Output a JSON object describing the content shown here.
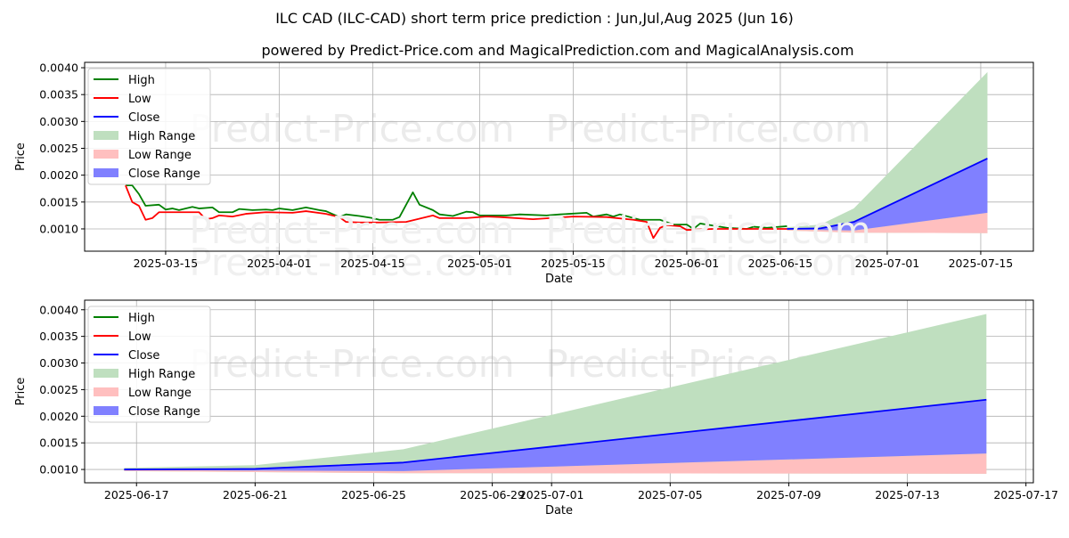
{
  "title": "ILC CAD (ILC-CAD) short term price prediction : Jun,Jul,Aug 2025 (Jun 16)",
  "subtitle": "powered by Predict-Price.com and MagicalPrediction.com and MagicalAnalysis.com",
  "watermark": "Predict-Price.com",
  "colors": {
    "high": "#008000",
    "low": "#ff0000",
    "close": "#0000ff",
    "high_range": "#bfdfbf",
    "low_range": "#ffbfbf",
    "close_range": "#8080ff"
  },
  "chart_data": [
    {
      "type": "line",
      "xlabel": "Date",
      "ylabel": "Price",
      "xlim": [
        "2025-03-02T21:00",
        "2025-07-22T21:00"
      ],
      "ylim": [
        0.000585,
        0.0041
      ],
      "grid": true,
      "legend_placement": "top-left",
      "legend": [
        "High",
        "Low",
        "Close",
        "High Range",
        "Low Range",
        "Close Range"
      ],
      "xticks": [
        "2025-03-15",
        "2025-04-01",
        "2025-04-15",
        "2025-05-01",
        "2025-05-15",
        "2025-06-01",
        "2025-06-15",
        "2025-07-01",
        "2025-07-15"
      ],
      "yticks": [
        "0.0010",
        "0.0015",
        "0.0020",
        "0.0025",
        "0.0030",
        "0.0035",
        "0.0040"
      ],
      "series": [
        {
          "name": "High",
          "points": [
            [
              "2025-03-09",
              0.00181
            ],
            [
              "2025-03-10",
              0.00181
            ],
            [
              "2025-03-11",
              0.00165
            ],
            [
              "2025-03-12",
              0.00143
            ],
            [
              "2025-03-14",
              0.00145
            ],
            [
              "2025-03-15",
              0.00136
            ],
            [
              "2025-03-16",
              0.00138
            ],
            [
              "2025-03-17",
              0.00135
            ],
            [
              "2025-03-19",
              0.00141
            ],
            [
              "2025-03-20",
              0.00138
            ],
            [
              "2025-03-22",
              0.0014
            ],
            [
              "2025-03-23",
              0.00131
            ],
            [
              "2025-03-25",
              0.00131
            ],
            [
              "2025-03-26",
              0.00137
            ],
            [
              "2025-03-28",
              0.00135
            ],
            [
              "2025-03-30",
              0.00136
            ],
            [
              "2025-03-31",
              0.00135
            ],
            [
              "2025-04-01",
              0.00138
            ],
            [
              "2025-04-03",
              0.00135
            ],
            [
              "2025-04-05",
              0.0014
            ],
            [
              "2025-04-07",
              0.00135
            ],
            [
              "2025-04-08",
              0.00133
            ],
            [
              "2025-04-10",
              0.00122
            ],
            [
              "2025-04-11",
              0.00127
            ],
            [
              "2025-04-13",
              0.00124
            ],
            [
              "2025-04-15",
              0.0012
            ],
            [
              "2025-04-16",
              0.00117
            ],
            [
              "2025-04-18",
              0.00117
            ],
            [
              "2025-04-19",
              0.00122
            ],
            [
              "2025-04-21",
              0.00168
            ],
            [
              "2025-04-22",
              0.00145
            ],
            [
              "2025-04-24",
              0.00135
            ],
            [
              "2025-04-25",
              0.00127
            ],
            [
              "2025-04-27",
              0.00124
            ],
            [
              "2025-04-29",
              0.00132
            ],
            [
              "2025-04-30",
              0.00131
            ],
            [
              "2025-05-01",
              0.00125
            ],
            [
              "2025-05-05",
              0.00125
            ],
            [
              "2025-05-07",
              0.00127
            ],
            [
              "2025-05-11",
              0.00125
            ],
            [
              "2025-05-13",
              0.00127
            ],
            [
              "2025-05-17",
              0.0013
            ],
            [
              "2025-05-18",
              0.00123
            ],
            [
              "2025-05-20",
              0.00127
            ],
            [
              "2025-05-21",
              0.00123
            ],
            [
              "2025-05-22",
              0.00127
            ],
            [
              "2025-05-25",
              0.00117
            ],
            [
              "2025-05-28",
              0.00117
            ],
            [
              "2025-05-30",
              0.00108
            ],
            [
              "2025-06-01",
              0.00108
            ],
            [
              "2025-06-02",
              0.001
            ],
            [
              "2025-06-03",
              0.0011
            ],
            [
              "2025-06-07",
              0.00102
            ],
            [
              "2025-06-10",
              0.001
            ],
            [
              "2025-06-11",
              0.00104
            ],
            [
              "2025-06-13",
              0.00102
            ],
            [
              "2025-06-16",
              0.00105
            ]
          ]
        },
        {
          "name": "Low",
          "points": [
            [
              "2025-03-09",
              0.00181
            ],
            [
              "2025-03-10",
              0.0015
            ],
            [
              "2025-03-11",
              0.00143
            ],
            [
              "2025-03-12",
              0.00117
            ],
            [
              "2025-03-13",
              0.0012
            ],
            [
              "2025-03-14",
              0.00131
            ],
            [
              "2025-03-20",
              0.00131
            ],
            [
              "2025-03-21",
              0.00118
            ],
            [
              "2025-03-22",
              0.0012
            ],
            [
              "2025-03-23",
              0.00125
            ],
            [
              "2025-03-25",
              0.00123
            ],
            [
              "2025-03-27",
              0.00128
            ],
            [
              "2025-03-30",
              0.00131
            ],
            [
              "2025-04-03",
              0.0013
            ],
            [
              "2025-04-05",
              0.00133
            ],
            [
              "2025-04-08",
              0.00128
            ],
            [
              "2025-04-10",
              0.00122
            ],
            [
              "2025-04-11",
              0.00113
            ],
            [
              "2025-04-13",
              0.00112
            ],
            [
              "2025-04-16",
              0.00112
            ],
            [
              "2025-04-20",
              0.00113
            ],
            [
              "2025-04-24",
              0.00125
            ],
            [
              "2025-04-25",
              0.0012
            ],
            [
              "2025-04-29",
              0.0012
            ],
            [
              "2025-05-02",
              0.00123
            ],
            [
              "2025-05-04",
              0.00122
            ],
            [
              "2025-05-09",
              0.00118
            ],
            [
              "2025-05-15",
              0.00123
            ],
            [
              "2025-05-20",
              0.00122
            ],
            [
              "2025-05-24",
              0.00117
            ],
            [
              "2025-05-26",
              0.00113
            ],
            [
              "2025-05-27",
              0.00083
            ],
            [
              "2025-05-28",
              0.00102
            ],
            [
              "2025-05-29",
              0.00107
            ],
            [
              "2025-05-31",
              0.00105
            ],
            [
              "2025-06-01",
              0.00098
            ],
            [
              "2025-06-05",
              0.001
            ],
            [
              "2025-06-09",
              0.001
            ],
            [
              "2025-06-16",
              0.001
            ]
          ]
        },
        {
          "name": "Close",
          "points": [
            [
              "2025-06-16",
              0.001
            ],
            [
              "2025-06-21",
              0.00101
            ],
            [
              "2025-06-26",
              0.00113
            ],
            [
              "2025-07-16",
              0.00231
            ]
          ]
        }
      ],
      "ranges": {
        "dates": [
          "2025-06-16",
          "2025-06-21",
          "2025-06-26",
          "2025-07-16"
        ],
        "high": [
          0.00103,
          0.00108,
          0.00138,
          0.00392
        ],
        "close": [
          0.001,
          0.00101,
          0.00113,
          0.00231
        ],
        "low_upper": [
          0.00099,
          0.00098,
          0.00097,
          0.0013
        ],
        "low_lower": [
          0.00097,
          0.00095,
          0.00093,
          0.00092
        ]
      }
    },
    {
      "type": "line",
      "xlabel": "Date",
      "ylabel": "Price",
      "xlim": [
        "2025-06-15T06:00",
        "2025-07-17T06:00"
      ],
      "ylim": [
        0.00075,
        0.00418
      ],
      "grid": true,
      "legend_placement": "top-left",
      "legend": [
        "High",
        "Low",
        "Close",
        "High Range",
        "Low Range",
        "Close Range"
      ],
      "xticks": [
        "2025-06-17",
        "2025-06-21",
        "2025-06-25",
        "2025-06-29",
        "2025-07-01",
        "2025-07-05",
        "2025-07-09",
        "2025-07-13",
        "2025-07-17"
      ],
      "yticks": [
        "0.0010",
        "0.0015",
        "0.0020",
        "0.0025",
        "0.0030",
        "0.0035",
        "0.0040"
      ],
      "series": [
        {
          "name": "Close",
          "points": [
            [
              "2025-06-16T14:00",
              0.001
            ],
            [
              "2025-06-21",
              0.00101
            ],
            [
              "2025-06-26",
              0.00113
            ],
            [
              "2025-07-15T16:00",
              0.00231
            ]
          ]
        }
      ],
      "ranges": {
        "dates": [
          "2025-06-16T14:00",
          "2025-06-21",
          "2025-06-26",
          "2025-07-15T16:00"
        ],
        "high": [
          0.00103,
          0.00108,
          0.00138,
          0.00392
        ],
        "close": [
          0.001,
          0.00101,
          0.00113,
          0.00231
        ],
        "low_upper": [
          0.00099,
          0.00098,
          0.00097,
          0.0013
        ],
        "low_lower": [
          0.00097,
          0.00095,
          0.00093,
          0.00092
        ]
      }
    }
  ]
}
